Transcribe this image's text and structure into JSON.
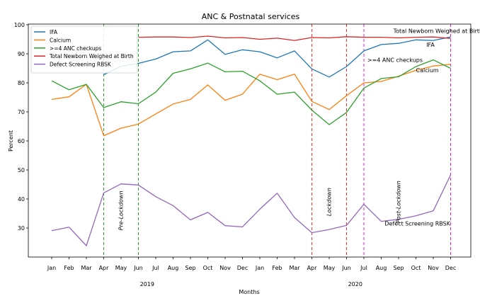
{
  "chart_data": {
    "type": "line",
    "title": "ANC & Postnatal services",
    "xlabel": "Months",
    "ylabel": "Percent",
    "ylim": [
      20,
      100
    ],
    "yticks": [
      30,
      40,
      50,
      60,
      70,
      80,
      90,
      100
    ],
    "x": [
      "Jan",
      "Feb",
      "Mar",
      "Apr",
      "May",
      "Jun",
      "Jul",
      "Aug",
      "Sep",
      "Oct",
      "Nov",
      "Dec",
      "Jan",
      "Feb",
      "Mar",
      "Apr",
      "May",
      "Jun",
      "Jul",
      "Aug",
      "Sep",
      "Oct",
      "Nov",
      "Dec"
    ],
    "year_labels": [
      {
        "text": "2019",
        "at": 5.5
      },
      {
        "text": "2020",
        "at": 17.5
      }
    ],
    "grid": false,
    "legend_position": "top-left",
    "series": [
      {
        "name": "IFA",
        "color": "#1f77b4",
        "values": [
          null,
          null,
          null,
          82.8,
          85.7,
          86.7,
          88.2,
          90.7,
          91.0,
          94.8,
          89.8,
          91.4,
          90.7,
          88.6,
          91.0,
          84.8,
          82.0,
          85.6,
          91.0,
          93.2,
          93.6,
          94.8,
          94.6,
          95.8
        ]
      },
      {
        "name": "Calcium",
        "color": "#ff7f0e",
        "values": [
          74.3,
          75.2,
          79.5,
          61.8,
          64.4,
          65.8,
          69.3,
          72.7,
          74.3,
          79.3,
          74.0,
          76.1,
          83.0,
          81.1,
          83.0,
          73.6,
          70.8,
          75.6,
          80.0,
          80.5,
          82.3,
          84.3,
          85.8,
          86.4
        ]
      },
      {
        "name": ">=4 ANC checkups",
        "color": "#2ca02c",
        "values": [
          80.7,
          77.6,
          79.5,
          71.5,
          73.5,
          72.8,
          76.8,
          83.3,
          84.8,
          86.8,
          83.8,
          84.0,
          80.7,
          76.1,
          76.8,
          70.6,
          65.6,
          69.8,
          78.2,
          81.5,
          82.1,
          85.6,
          87.9,
          85.0
        ]
      },
      {
        "name": "Total Newborn Weighed at Birth",
        "color": "#d62728",
        "values": [
          null,
          null,
          null,
          null,
          null,
          95.7,
          95.8,
          95.8,
          95.6,
          96.1,
          95.5,
          95.6,
          95.0,
          95.4,
          94.6,
          95.6,
          95.5,
          95.9,
          95.7,
          95.7,
          95.5,
          95.7,
          95.8,
          95.3
        ]
      },
      {
        "name": "Defect Screening RBSK",
        "color": "#9467bd",
        "values": [
          29.1,
          30.3,
          23.9,
          42.1,
          45.2,
          44.8,
          40.8,
          37.7,
          32.8,
          35.4,
          30.8,
          30.4,
          36.5,
          42.0,
          33.6,
          28.4,
          29.5,
          30.9,
          38.2,
          32.3,
          33.0,
          34.2,
          35.9,
          48.3
        ]
      }
    ],
    "vlines": [
      {
        "x_index": 3,
        "color": "#2ca02c"
      },
      {
        "x_index": 5,
        "color": "#2ca02c"
      },
      {
        "x_index": 15,
        "color": "#ff2a2a"
      },
      {
        "x_index": 17,
        "color": "#ff2a2a"
      },
      {
        "x_index": 18,
        "color": "#dd22dd"
      },
      {
        "x_index": 23,
        "color": "#dd22dd"
      }
    ],
    "annotations": [
      {
        "text": "Pre-Lockdown",
        "x": 4.1,
        "y": 36,
        "rotate": -90
      },
      {
        "text": "Lockdown",
        "x": 16.1,
        "y": 39,
        "rotate": -90
      },
      {
        "text": "Post-Lockdown",
        "x": 20.1,
        "y": 39,
        "rotate": -90
      },
      {
        "text": "Total Newborn Weighed at Birth",
        "x": 19.7,
        "y": 97.2,
        "rotate": 0
      },
      {
        "text": "IFA",
        "x": 21.6,
        "y": 92.5,
        "rotate": 0
      },
      {
        "text": ">=4 ANC checkups",
        "x": 18.2,
        "y": 87.2,
        "rotate": 0
      },
      {
        "text": "Calcium",
        "x": 21.0,
        "y": 83.6,
        "rotate": 0
      },
      {
        "text": "Defect Screening RBSK",
        "x": 19.2,
        "y": 30.9,
        "rotate": 0
      }
    ]
  }
}
